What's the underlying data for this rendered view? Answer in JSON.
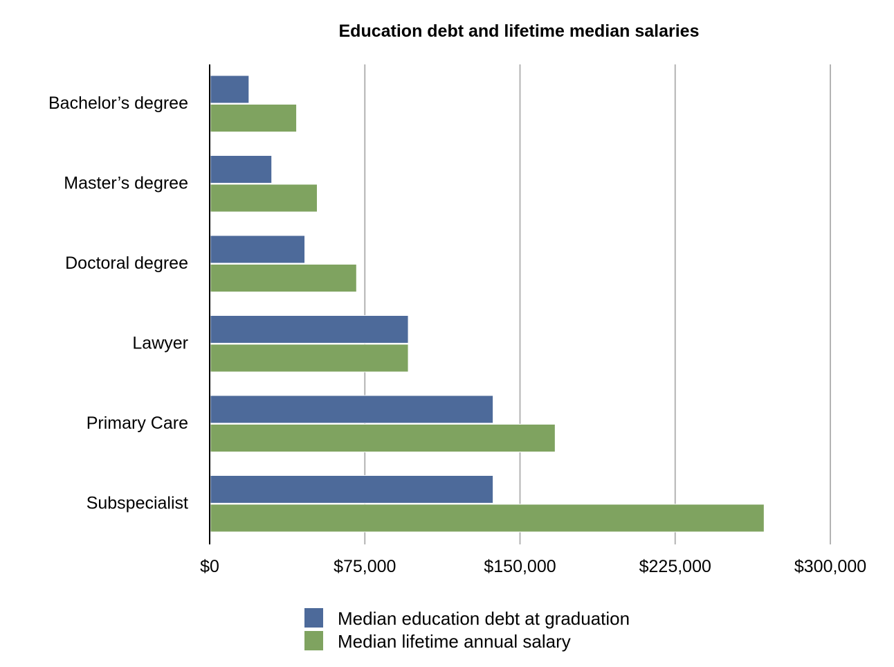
{
  "chart_data": {
    "type": "bar",
    "orientation": "horizontal",
    "title": "Education debt and lifetime median salaries",
    "xlabel": "",
    "ylabel": "",
    "categories": [
      "Bachelor’s  degree",
      "Master’s degree",
      "Doctoral degree",
      "Lawyer",
      "Primary Care",
      "Subspecialist"
    ],
    "series": [
      {
        "name": "Median education debt at graduation",
        "color": "#4d6a9a",
        "values": [
          19000,
          30000,
          46000,
          96000,
          137000,
          137000
        ]
      },
      {
        "name": "Median lifetime annual salary",
        "color": "#7fa360",
        "values": [
          42000,
          52000,
          71000,
          96000,
          167000,
          268000
        ]
      }
    ],
    "xlim": [
      0,
      300000
    ],
    "xticks": [
      0,
      75000,
      150000,
      225000,
      300000
    ],
    "xtick_labels": [
      "$0",
      "$75,000",
      "$150,000",
      "$225,000",
      "$300,000"
    ],
    "grid": "vertical",
    "legend_position": "bottom"
  }
}
